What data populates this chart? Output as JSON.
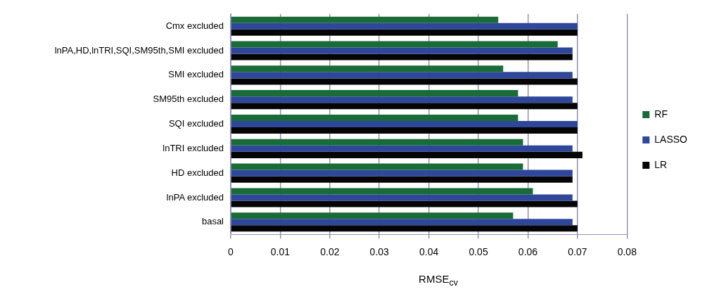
{
  "chart_data": {
    "type": "bar",
    "orientation": "horizontal",
    "xlabel": "RMSE$_{cv}$",
    "categories": [
      "Cmx excluded",
      "lnPA,HD,lnTRI,SQI,SM95th,SMI excluded",
      "SMI excluded",
      "SM95th excluded",
      "SQI excluded",
      "lnTRI excluded",
      "HD excluded",
      "lnPA excluded",
      "basal"
    ],
    "series": [
      {
        "name": "RF",
        "color": "#196b37",
        "values": [
          0.054,
          0.066,
          0.055,
          0.058,
          0.058,
          0.059,
          0.059,
          0.061,
          0.057
        ]
      },
      {
        "name": "LASSO",
        "color": "#2e479b",
        "values": [
          0.07,
          0.069,
          0.069,
          0.069,
          0.07,
          0.069,
          0.069,
          0.069,
          0.069
        ]
      },
      {
        "name": "LR",
        "color": "#050505",
        "values": [
          0.07,
          0.069,
          0.07,
          0.07,
          0.07,
          0.071,
          0.069,
          0.07,
          0.07
        ]
      }
    ],
    "xlim": [
      0,
      0.08
    ],
    "xticks": [
      0,
      0.01,
      0.02,
      0.03,
      0.04,
      0.05,
      0.06,
      0.07,
      0.08
    ],
    "grid": "x",
    "legend": "right"
  }
}
